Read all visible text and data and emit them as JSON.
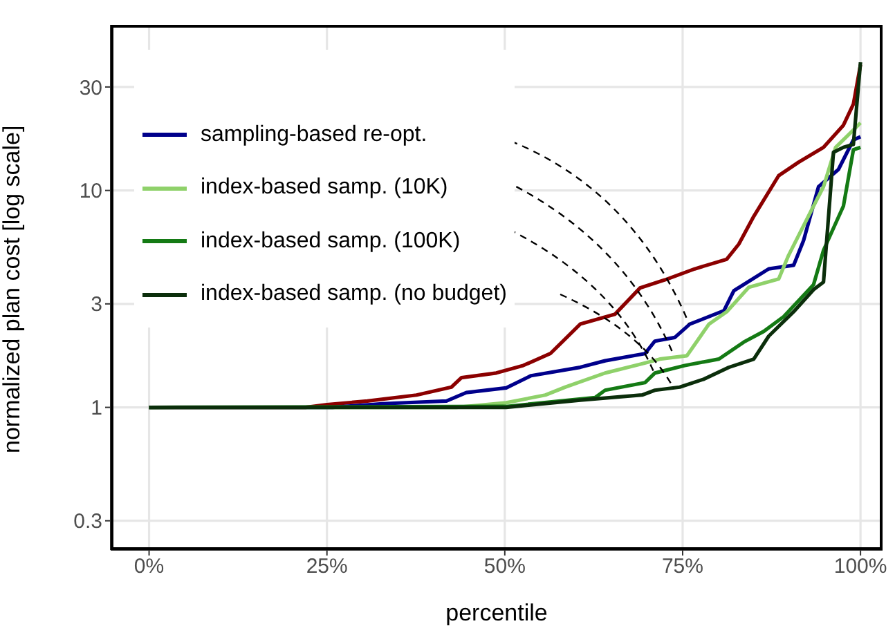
{
  "chart_data": {
    "type": "line",
    "xlabel": "percentile",
    "ylabel": "normalized plan cost [log scale]",
    "xlim": [
      -5.4,
      103.1
    ],
    "xticks": [
      {
        "value": 0,
        "label": "0%"
      },
      {
        "value": 25,
        "label": "25%"
      },
      {
        "value": 50,
        "label": "50%"
      },
      {
        "value": 75,
        "label": "75%"
      },
      {
        "value": 100,
        "label": "100%"
      }
    ],
    "ylim": [
      0.22,
      58
    ],
    "yticks": [
      0.3,
      1,
      3,
      10,
      30
    ],
    "log": "y",
    "grid": true,
    "legend": "top left",
    "line_style": "solid",
    "marker": "none",
    "series": [
      {
        "color": "#8b0000",
        "x": [
          0,
          22,
          25,
          30.7,
          37.6,
          42.5,
          43.9,
          48.8,
          52.6,
          56.4,
          60.6,
          65.5,
          69,
          72.5,
          76.7,
          81.2,
          82.9,
          85,
          88.5,
          91.3,
          94.8,
          97.6,
          99,
          100
        ],
        "values": [
          1,
          1,
          1.03,
          1.07,
          1.14,
          1.24,
          1.37,
          1.44,
          1.56,
          1.77,
          2.42,
          2.69,
          3.55,
          3.87,
          4.35,
          4.82,
          5.66,
          7.6,
          11.7,
          13.5,
          15.8,
          20,
          25,
          38
        ]
      },
      {
        "name": "sampling-based re-opt.",
        "color": "#00008b",
        "x": [
          0,
          25.8,
          32.8,
          41.8,
          44.6,
          50.2,
          53.7,
          60.6,
          64.1,
          69.7,
          71.1,
          73.9,
          76,
          80.8,
          82.2,
          87.1,
          90.6,
          92,
          94.1,
          96.9,
          99,
          100
        ],
        "values": [
          1,
          1,
          1.04,
          1.07,
          1.17,
          1.23,
          1.4,
          1.53,
          1.64,
          1.77,
          2.02,
          2.1,
          2.42,
          2.79,
          3.45,
          4.35,
          4.52,
          5.88,
          10.4,
          12.5,
          17.1,
          17.7
        ]
      },
      {
        "name": "index-based samp. (10K)",
        "color": "#8fd16a",
        "x": [
          0,
          43.2,
          50.2,
          55.7,
          58.5,
          64.1,
          69,
          71.8,
          75.6,
          78.7,
          81.2,
          84.3,
          88.5,
          89.9,
          93.4,
          94.8,
          96.5,
          99,
          100
        ],
        "values": [
          1,
          1,
          1.05,
          1.14,
          1.24,
          1.44,
          1.58,
          1.67,
          1.73,
          2.42,
          2.76,
          3.58,
          3.91,
          5.03,
          8.47,
          10.4,
          15.8,
          19,
          20.5
        ]
      },
      {
        "name": "index-based samp. (100K)",
        "color": "#147a14",
        "x": [
          0,
          50.2,
          62.7,
          64.1,
          69.7,
          71.1,
          75.3,
          80.1,
          83.6,
          86.4,
          89.2,
          93.4,
          94.8,
          97.6,
          99,
          100
        ],
        "values": [
          1,
          1.01,
          1.11,
          1.2,
          1.3,
          1.44,
          1.56,
          1.67,
          2,
          2.24,
          2.62,
          3.68,
          5.3,
          8.47,
          15.4,
          15.8
        ]
      },
      {
        "name": "index-based samp. (no budget)",
        "color": "#0b2e0b",
        "x": [
          0,
          50.2,
          60.6,
          69.3,
          71.1,
          74.6,
          78,
          81.5,
          85,
          87.1,
          90.6,
          93.4,
          94.8,
          96.2,
          97.6,
          99,
          100
        ],
        "values": [
          1,
          1,
          1.08,
          1.14,
          1.2,
          1.24,
          1.35,
          1.53,
          1.67,
          2.13,
          2.76,
          3.49,
          3.78,
          15,
          15.8,
          16.3,
          39
        ]
      }
    ]
  }
}
